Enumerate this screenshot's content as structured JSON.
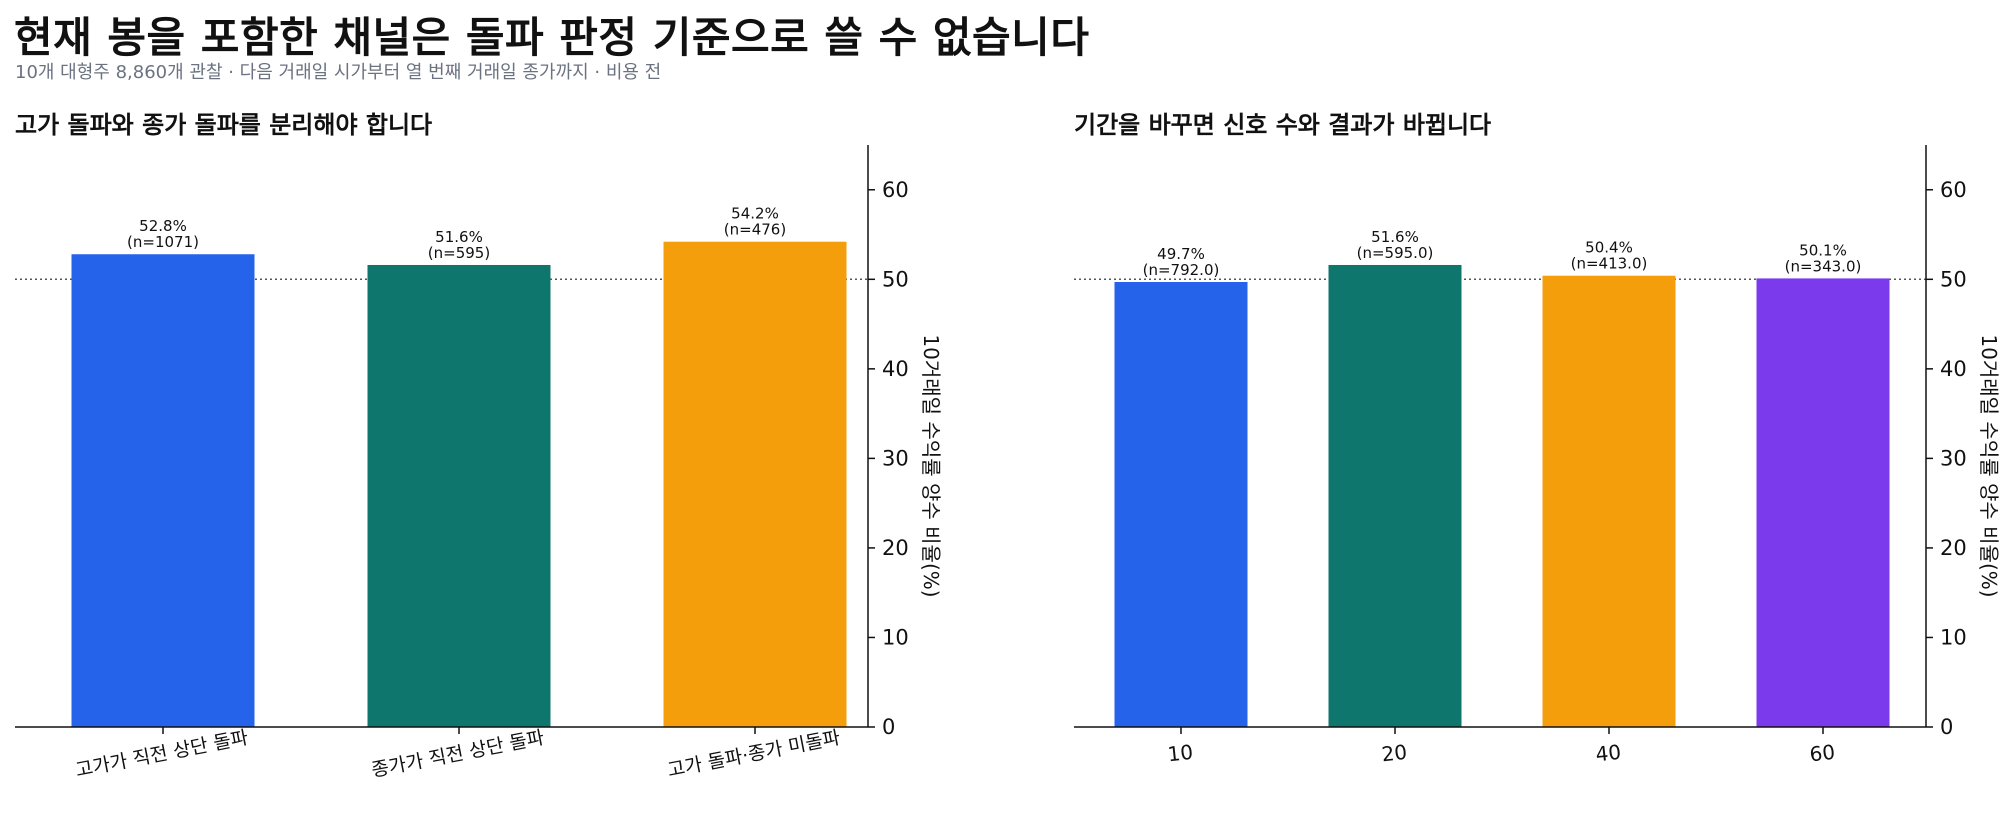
{
  "header": {
    "title": "현재 봉을 포함한 채널은 돌파 판정 기준으로 쓸 수 없습니다",
    "subtitle": "10개 대형주 8,860개 관찰 · 다음 거래일 시가부터 열 번째 거래일 종가까지 · 비용 전"
  },
  "chart_data": [
    {
      "type": "bar",
      "title": "고가 돌파와 종가 돌파를 분리해야 합니다",
      "categories": [
        "고가가 직전 상단 돌파",
        "종가가 직전 상단 돌파",
        "고가 돌파·종가 미돌파"
      ],
      "values": [
        52.8,
        51.6,
        54.2
      ],
      "value_labels": [
        "52.8%",
        "51.6%",
        "54.2%"
      ],
      "n_labels": [
        "(n=1071)",
        "(n=595)",
        "(n=476)"
      ],
      "colors": [
        "#2563eb",
        "#0f766e",
        "#f59e0b"
      ],
      "ylabel": "10거래일 수익률 양수 비율(%)",
      "yticks": [
        "0",
        "10",
        "20",
        "30",
        "40",
        "50",
        "60"
      ],
      "ylim": [
        0,
        65
      ],
      "reference_line": 50,
      "y_axis_side": "right",
      "tick_label_rotation": "rotated"
    },
    {
      "type": "bar",
      "title": "기간을 바꾸면 신호 수와 결과가 바뀝니다",
      "categories": [
        "10",
        "20",
        "40",
        "60"
      ],
      "values": [
        49.7,
        51.6,
        50.4,
        50.1
      ],
      "value_labels": [
        "49.7%",
        "51.6%",
        "50.4%",
        "50.1%"
      ],
      "n_labels": [
        "(n=792.0)",
        "(n=595.0)",
        "(n=413.0)",
        "(n=343.0)"
      ],
      "colors": [
        "#2563eb",
        "#0f766e",
        "#f59e0b",
        "#7c3aed"
      ],
      "ylabel": "10거래일 수익률 양수 비율(%)",
      "yticks": [
        "0",
        "10",
        "20",
        "30",
        "40",
        "50",
        "60"
      ],
      "ylim": [
        0,
        65
      ],
      "reference_line": 50,
      "y_axis_side": "right",
      "tick_label_rotation": "slight"
    }
  ]
}
